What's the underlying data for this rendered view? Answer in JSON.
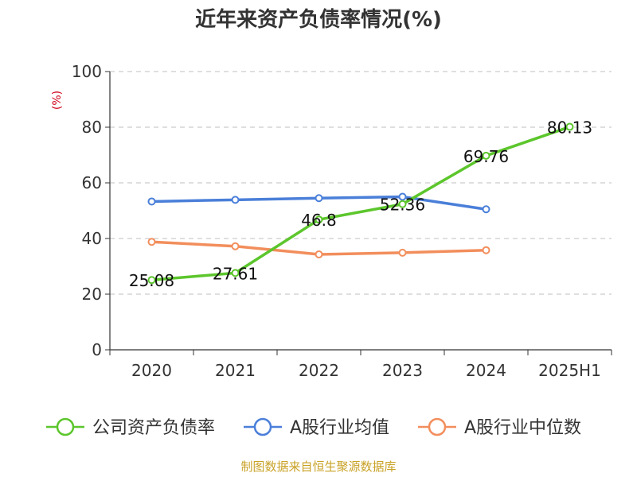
{
  "chart_data": {
    "type": "line",
    "title": "近年来资产负债率情况(%)",
    "ylabel": "(%)",
    "xlabel": "",
    "ylim": [
      0,
      100
    ],
    "yticks": [
      0,
      20,
      40,
      60,
      80,
      100
    ],
    "categories": [
      "2020",
      "2021",
      "2022",
      "2023",
      "2024",
      "2025H1"
    ],
    "grid": true,
    "legend_position": "bottom",
    "series": [
      {
        "name": "公司资产负债率",
        "color": "#5cc62c",
        "values": [
          25.08,
          27.61,
          46.8,
          52.36,
          69.76,
          80.13
        ],
        "labels": [
          "25.08",
          "27.61",
          "46.8",
          "52.36",
          "69.76",
          "80.13"
        ]
      },
      {
        "name": "A股行业均值",
        "color": "#4a7fd9",
        "values": [
          53.3,
          53.9,
          54.5,
          55.0,
          50.5,
          null
        ]
      },
      {
        "name": "A股行业中位数",
        "color": "#f28e5c",
        "values": [
          38.8,
          37.2,
          34.3,
          34.9,
          35.8,
          null
        ]
      }
    ]
  },
  "footer": "制图数据来自恒生聚源数据库"
}
